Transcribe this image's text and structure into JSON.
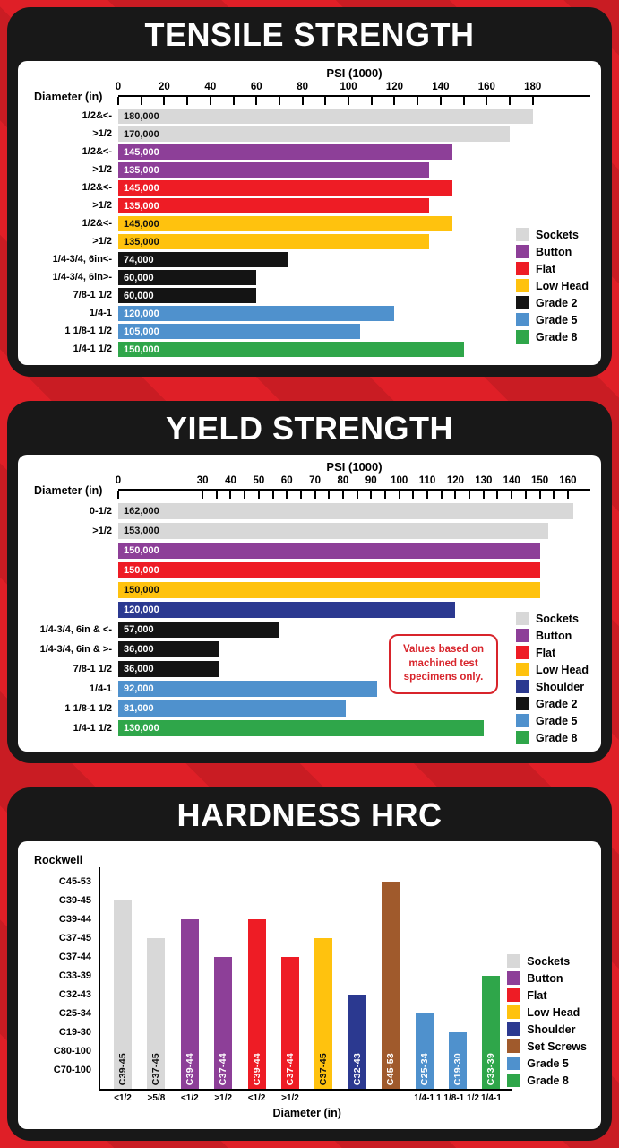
{
  "colors": {
    "sockets": "#d8d8d8",
    "button": "#8d3f98",
    "flat": "#ee1c25",
    "low_head": "#ffc20e",
    "shoulder": "#2b3990",
    "grade2": "#141414",
    "grade5": "#4f91cd",
    "grade8": "#2fa64a",
    "set_screws": "#a05a2c",
    "background_red": "#df1f27",
    "stripe_red": "#c91c23",
    "panel_black": "#181818",
    "note_red": "#d8242b"
  },
  "chart_data": [
    {
      "type": "bar",
      "orientation": "horizontal",
      "title": "TENSILE STRENGTH",
      "axis_title": "PSI (1000)",
      "ylabel": "Diameter (in)",
      "ticks": [
        0,
        20,
        40,
        60,
        80,
        100,
        120,
        140,
        160,
        180
      ],
      "xlim": [
        0,
        205
      ],
      "grid": false,
      "legend_position": "right-bottom",
      "bars": [
        {
          "category": "1/2&<-",
          "value": 180000,
          "value_label": "180,000",
          "series": "Sockets",
          "color": "sockets",
          "dark_text": true
        },
        {
          "category": ">1/2",
          "value": 170000,
          "value_label": "170,000",
          "series": "Sockets",
          "color": "sockets",
          "dark_text": true
        },
        {
          "category": "1/2&<-",
          "value": 145000,
          "value_label": "145,000",
          "series": "Button",
          "color": "button",
          "dark_text": false
        },
        {
          "category": ">1/2",
          "value": 135000,
          "value_label": "135,000",
          "series": "Button",
          "color": "button",
          "dark_text": false
        },
        {
          "category": "1/2&<-",
          "value": 145000,
          "value_label": "145,000",
          "series": "Flat",
          "color": "flat",
          "dark_text": false
        },
        {
          "category": ">1/2",
          "value": 135000,
          "value_label": "135,000",
          "series": "Flat",
          "color": "flat",
          "dark_text": false
        },
        {
          "category": "1/2&<-",
          "value": 145000,
          "value_label": "145,000",
          "series": "Low Head",
          "color": "low_head",
          "dark_text": true
        },
        {
          "category": ">1/2",
          "value": 135000,
          "value_label": "135,000",
          "series": "Low Head",
          "color": "low_head",
          "dark_text": true
        },
        {
          "category": "1/4-3/4, 6in<-",
          "value": 74000,
          "value_label": "74,000",
          "series": "Grade 2",
          "color": "grade2",
          "dark_text": false
        },
        {
          "category": "1/4-3/4, 6in>-",
          "value": 60000,
          "value_label": "60,000",
          "series": "Grade 2",
          "color": "grade2",
          "dark_text": false
        },
        {
          "category": "7/8-1 1/2",
          "value": 60000,
          "value_label": "60,000",
          "series": "Grade 2",
          "color": "grade2",
          "dark_text": false
        },
        {
          "category": "1/4-1",
          "value": 120000,
          "value_label": "120,000",
          "series": "Grade 5",
          "color": "grade5",
          "dark_text": false
        },
        {
          "category": "1 1/8-1 1/2",
          "value": 105000,
          "value_label": "105,000",
          "series": "Grade 5",
          "color": "grade5",
          "dark_text": false
        },
        {
          "category": "1/4-1 1/2",
          "value": 150000,
          "value_label": "150,000",
          "series": "Grade 8",
          "color": "grade8",
          "dark_text": false
        }
      ],
      "legend": [
        {
          "label": "Sockets",
          "color": "sockets"
        },
        {
          "label": "Button",
          "color": "button"
        },
        {
          "label": "Flat",
          "color": "flat"
        },
        {
          "label": "Low Head",
          "color": "low_head"
        },
        {
          "label": "Grade 2",
          "color": "grade2"
        },
        {
          "label": "Grade 5",
          "color": "grade5"
        },
        {
          "label": "Grade 8",
          "color": "grade8"
        }
      ]
    },
    {
      "type": "bar",
      "orientation": "horizontal",
      "title": "YIELD STRENGTH",
      "axis_title": "PSI (1000)",
      "ylabel": "Diameter (in)",
      "ticks": [
        0,
        30,
        40,
        50,
        60,
        70,
        80,
        90,
        100,
        110,
        120,
        130,
        140,
        150,
        160
      ],
      "xlim": [
        0,
        168
      ],
      "grid": false,
      "legend_position": "right-bottom",
      "note_lines": [
        "Values based on",
        "machined test",
        "specimens only."
      ],
      "bars": [
        {
          "category": "0-1/2",
          "value": 162000,
          "value_label": "162,000",
          "series": "Sockets",
          "color": "sockets",
          "dark_text": true
        },
        {
          "category": ">1/2",
          "value": 153000,
          "value_label": "153,000",
          "series": "Sockets",
          "color": "sockets",
          "dark_text": true
        },
        {
          "category": "",
          "value": 150000,
          "value_label": "150,000",
          "series": "Button",
          "color": "button",
          "dark_text": false
        },
        {
          "category": "",
          "value": 150000,
          "value_label": "150,000",
          "series": "Flat",
          "color": "flat",
          "dark_text": false
        },
        {
          "category": "",
          "value": 150000,
          "value_label": "150,000",
          "series": "Low Head",
          "color": "low_head",
          "dark_text": true
        },
        {
          "category": "",
          "value": 120000,
          "value_label": "120,000",
          "series": "Shoulder",
          "color": "shoulder",
          "dark_text": false
        },
        {
          "category": "1/4-3/4, 6in & <-",
          "value": 57000,
          "value_label": "57,000",
          "series": "Grade 2",
          "color": "grade2",
          "dark_text": false
        },
        {
          "category": "1/4-3/4, 6in & >-",
          "value": 36000,
          "value_label": "36,000",
          "series": "Grade 2",
          "color": "grade2",
          "dark_text": false
        },
        {
          "category": "7/8-1 1/2",
          "value": 36000,
          "value_label": "36,000",
          "series": "Grade 2",
          "color": "grade2",
          "dark_text": false
        },
        {
          "category": "1/4-1",
          "value": 92000,
          "value_label": "92,000",
          "series": "Grade 5",
          "color": "grade5",
          "dark_text": false
        },
        {
          "category": "1 1/8-1 1/2",
          "value": 81000,
          "value_label": "81,000",
          "series": "Grade 5",
          "color": "grade5",
          "dark_text": false
        },
        {
          "category": "1/4-1 1/2",
          "value": 130000,
          "value_label": "130,000",
          "series": "Grade 8",
          "color": "grade8",
          "dark_text": false
        }
      ],
      "legend": [
        {
          "label": "Sockets",
          "color": "sockets"
        },
        {
          "label": "Button",
          "color": "button"
        },
        {
          "label": "Flat",
          "color": "flat"
        },
        {
          "label": "Low Head",
          "color": "low_head"
        },
        {
          "label": "Shoulder",
          "color": "shoulder"
        },
        {
          "label": "Grade 2",
          "color": "grade2"
        },
        {
          "label": "Grade 5",
          "color": "grade5"
        },
        {
          "label": "Grade 8",
          "color": "grade8"
        }
      ]
    },
    {
      "type": "bar",
      "orientation": "vertical",
      "title": "HARDNESS HRC",
      "corner_label": "Rockwell",
      "xlabel": "Diameter (in)",
      "y_categories": [
        "C45-53",
        "C39-45",
        "C39-44",
        "C37-45",
        "C37-44",
        "C33-39",
        "C32-43",
        "C25-34",
        "C19-30",
        "C80-100",
        "C70-100"
      ],
      "grid": false,
      "legend_position": "right",
      "bars": [
        {
          "x_label": "<1/2",
          "value": "C39-45",
          "series": "Sockets",
          "color": "sockets",
          "dark_text": true
        },
        {
          "x_label": ">5/8",
          "value": "C37-45",
          "series": "Sockets",
          "color": "sockets",
          "dark_text": true
        },
        {
          "x_label": "<1/2",
          "value": "C39-44",
          "series": "Button",
          "color": "button",
          "dark_text": false
        },
        {
          "x_label": ">1/2",
          "value": "C37-44",
          "series": "Button",
          "color": "button",
          "dark_text": false
        },
        {
          "x_label": "<1/2",
          "value": "C39-44",
          "series": "Flat",
          "color": "flat",
          "dark_text": false
        },
        {
          "x_label": ">1/2",
          "value": "C37-44",
          "series": "Flat",
          "color": "flat",
          "dark_text": false
        },
        {
          "x_label": "",
          "value": "C37-45",
          "series": "Low Head",
          "color": "low_head",
          "dark_text": true
        },
        {
          "x_label": "",
          "value": "C32-43",
          "series": "Shoulder",
          "color": "shoulder",
          "dark_text": false
        },
        {
          "x_label": "",
          "value": "C45-53",
          "series": "Set Screws",
          "color": "set_screws",
          "dark_text": false
        },
        {
          "x_label": "1/4-1",
          "value": "C25-34",
          "series": "Grade 5",
          "color": "grade5",
          "dark_text": false
        },
        {
          "x_label": "1 1/8-1 1/2",
          "value": "C19-30",
          "series": "Grade 5",
          "color": "grade5",
          "dark_text": false
        },
        {
          "x_label": "1/4-1",
          "value": "C33-39",
          "series": "Grade 8",
          "color": "grade8",
          "dark_text": false
        }
      ],
      "legend": [
        {
          "label": "Sockets",
          "color": "sockets"
        },
        {
          "label": "Button",
          "color": "button"
        },
        {
          "label": "Flat",
          "color": "flat"
        },
        {
          "label": "Low Head",
          "color": "low_head"
        },
        {
          "label": "Shoulder",
          "color": "shoulder"
        },
        {
          "label": "Set Screws",
          "color": "set_screws"
        },
        {
          "label": "Grade 5",
          "color": "grade5"
        },
        {
          "label": "Grade 8",
          "color": "grade8"
        }
      ]
    }
  ]
}
